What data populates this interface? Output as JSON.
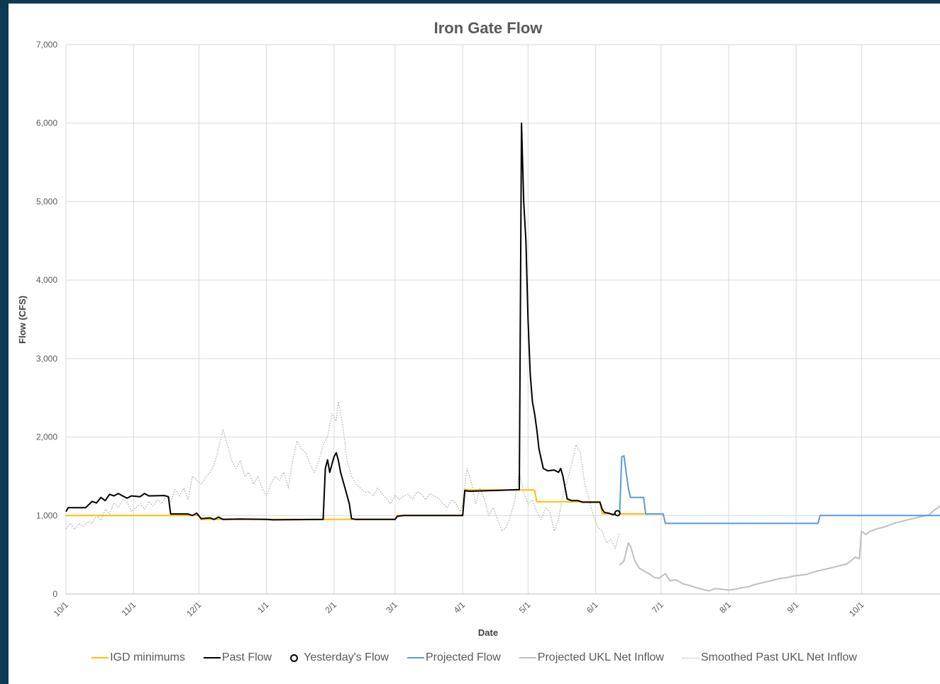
{
  "chart_data": {
    "type": "line",
    "title": "Iron Gate Flow",
    "xlabel": "Date",
    "ylabel": "Flow (CFS)",
    "ylim": [
      0,
      7000
    ],
    "y_ticks": [
      0,
      1000,
      2000,
      3000,
      4000,
      5000,
      6000,
      7000
    ],
    "y_tick_labels": [
      "0",
      "1,000",
      "2,000",
      "3,000",
      "4,000",
      "5,000",
      "6,000",
      "7,000"
    ],
    "x_ticks": [
      0,
      31,
      61,
      92,
      123,
      151,
      182,
      212,
      243,
      273,
      304,
      335,
      365
    ],
    "x_tick_labels": [
      "10/1",
      "11/1",
      "12/1",
      "1/1",
      "2/1",
      "3/1",
      "4/1",
      "5/1",
      "6/1",
      "7/1",
      "8/1",
      "9/1",
      "10/1"
    ],
    "xlim": [
      0,
      401
    ],
    "grid": true,
    "legend_position": "bottom",
    "series": [
      {
        "name": "IGD minimums",
        "color": "#FFC000",
        "style": "solid",
        "points": [
          [
            0,
            1000
          ],
          [
            61,
            1000
          ],
          [
            62,
            950
          ],
          [
            123,
            950
          ],
          [
            124,
            950
          ],
          [
            151,
            950
          ],
          [
            152,
            1000
          ],
          [
            182,
            1000
          ],
          [
            183,
            1325
          ],
          [
            215,
            1325
          ],
          [
            216,
            1175
          ],
          [
            245,
            1175
          ],
          [
            246,
            1021
          ],
          [
            268,
            1021
          ]
        ]
      },
      {
        "name": "Past Flow",
        "color": "#000000",
        "style": "solid",
        "points": [
          [
            0,
            1050
          ],
          [
            1,
            1100
          ],
          [
            9,
            1100
          ],
          [
            12,
            1180
          ],
          [
            14,
            1160
          ],
          [
            16,
            1230
          ],
          [
            18,
            1190
          ],
          [
            20,
            1270
          ],
          [
            22,
            1250
          ],
          [
            24,
            1280
          ],
          [
            26,
            1250
          ],
          [
            28,
            1220
          ],
          [
            30,
            1250
          ],
          [
            34,
            1240
          ],
          [
            36,
            1280
          ],
          [
            38,
            1250
          ],
          [
            45,
            1255
          ],
          [
            47,
            1240
          ],
          [
            48,
            1020
          ],
          [
            56,
            1020
          ],
          [
            58,
            1000
          ],
          [
            60,
            1030
          ],
          [
            62,
            960
          ],
          [
            66,
            970
          ],
          [
            68,
            950
          ],
          [
            70,
            980
          ],
          [
            72,
            950
          ],
          [
            80,
            955
          ],
          [
            92,
            950
          ],
          [
            95,
            945
          ],
          [
            110,
            948
          ],
          [
            118,
            950
          ],
          [
            119,
            1600
          ],
          [
            120,
            1710
          ],
          [
            121,
            1550
          ],
          [
            122,
            1650
          ],
          [
            123,
            1750
          ],
          [
            124,
            1800
          ],
          [
            125,
            1700
          ],
          [
            126,
            1550
          ],
          [
            128,
            1350
          ],
          [
            130,
            1150
          ],
          [
            131,
            960
          ],
          [
            133,
            950
          ],
          [
            145,
            950
          ],
          [
            151,
            950
          ],
          [
            152,
            990
          ],
          [
            155,
            1000
          ],
          [
            182,
            1000
          ],
          [
            183,
            1320
          ],
          [
            185,
            1310
          ],
          [
            198,
            1320
          ],
          [
            208,
            1330
          ],
          [
            209,
            6000
          ],
          [
            210,
            5000
          ],
          [
            211,
            4500
          ],
          [
            212,
            3500
          ],
          [
            213,
            2800
          ],
          [
            214,
            2450
          ],
          [
            215,
            2300
          ],
          [
            216,
            2100
          ],
          [
            217,
            1850
          ],
          [
            219,
            1600
          ],
          [
            221,
            1570
          ],
          [
            224,
            1580
          ],
          [
            226,
            1550
          ],
          [
            227,
            1600
          ],
          [
            228,
            1500
          ],
          [
            230,
            1210
          ],
          [
            232,
            1190
          ],
          [
            235,
            1190
          ],
          [
            237,
            1170
          ],
          [
            245,
            1170
          ],
          [
            246,
            1080
          ],
          [
            247,
            1040
          ],
          [
            249,
            1030
          ],
          [
            251,
            1010
          ],
          [
            253,
            1030
          ]
        ]
      },
      {
        "name": "Yesterday's Flow",
        "color": "#000000",
        "style": "marker",
        "points": [
          [
            253,
            1030
          ]
        ]
      },
      {
        "name": "Projected Flow",
        "color": "#5B9BD5",
        "style": "solid",
        "points": [
          [
            254,
            1030
          ],
          [
            255,
            1750
          ],
          [
            256,
            1760
          ],
          [
            257,
            1550
          ],
          [
            258,
            1350
          ],
          [
            259,
            1230
          ],
          [
            265,
            1230
          ],
          [
            266,
            1020
          ],
          [
            274,
            1020
          ],
          [
            275,
            900
          ],
          [
            345,
            900
          ],
          [
            346,
            1000
          ],
          [
            401,
            1000
          ]
        ]
      },
      {
        "name": "Projected UKL Net Inflow",
        "color": "#BFBFBF",
        "style": "solid",
        "points": [
          [
            254,
            370
          ],
          [
            256,
            420
          ],
          [
            258,
            650
          ],
          [
            259,
            610
          ],
          [
            261,
            420
          ],
          [
            263,
            330
          ],
          [
            266,
            280
          ],
          [
            268,
            250
          ],
          [
            270,
            210
          ],
          [
            272,
            200
          ],
          [
            275,
            260
          ],
          [
            277,
            170
          ],
          [
            280,
            180
          ],
          [
            283,
            130
          ],
          [
            286,
            110
          ],
          [
            289,
            80
          ],
          [
            292,
            60
          ],
          [
            295,
            40
          ],
          [
            298,
            70
          ],
          [
            301,
            60
          ],
          [
            304,
            50
          ],
          [
            307,
            60
          ],
          [
            310,
            80
          ],
          [
            313,
            90
          ],
          [
            316,
            120
          ],
          [
            319,
            140
          ],
          [
            322,
            160
          ],
          [
            325,
            180
          ],
          [
            328,
            200
          ],
          [
            331,
            210
          ],
          [
            334,
            230
          ],
          [
            337,
            240
          ],
          [
            340,
            250
          ],
          [
            343,
            280
          ],
          [
            346,
            300
          ],
          [
            349,
            320
          ],
          [
            352,
            340
          ],
          [
            355,
            360
          ],
          [
            358,
            380
          ],
          [
            360,
            420
          ],
          [
            362,
            470
          ],
          [
            364,
            450
          ],
          [
            365,
            800
          ],
          [
            367,
            760
          ],
          [
            369,
            800
          ],
          [
            372,
            830
          ],
          [
            375,
            850
          ],
          [
            378,
            880
          ],
          [
            381,
            910
          ],
          [
            384,
            930
          ],
          [
            387,
            950
          ],
          [
            390,
            970
          ],
          [
            393,
            990
          ],
          [
            396,
            1010
          ],
          [
            398,
            1060
          ],
          [
            401,
            1120
          ]
        ]
      },
      {
        "name": "Smoothed Past UKL Net Inflow",
        "color": "#A6A6A6",
        "style": "dotted",
        "points": [
          [
            0,
            830
          ],
          [
            2,
            900
          ],
          [
            4,
            820
          ],
          [
            6,
            900
          ],
          [
            8,
            860
          ],
          [
            10,
            920
          ],
          [
            12,
            900
          ],
          [
            14,
            1000
          ],
          [
            16,
            940
          ],
          [
            18,
            1080
          ],
          [
            20,
            1020
          ],
          [
            22,
            1160
          ],
          [
            24,
            1100
          ],
          [
            26,
            1200
          ],
          [
            28,
            1180
          ],
          [
            30,
            1050
          ],
          [
            32,
            1100
          ],
          [
            34,
            1150
          ],
          [
            36,
            1080
          ],
          [
            38,
            1180
          ],
          [
            40,
            1120
          ],
          [
            42,
            1200
          ],
          [
            44,
            1150
          ],
          [
            46,
            1250
          ],
          [
            48,
            1180
          ],
          [
            50,
            1330
          ],
          [
            52,
            1250
          ],
          [
            54,
            1350
          ],
          [
            56,
            1200
          ],
          [
            58,
            1500
          ],
          [
            60,
            1450
          ],
          [
            62,
            1400
          ],
          [
            64,
            1480
          ],
          [
            66,
            1550
          ],
          [
            68,
            1650
          ],
          [
            70,
            1850
          ],
          [
            72,
            2100
          ],
          [
            74,
            1900
          ],
          [
            76,
            1700
          ],
          [
            78,
            1600
          ],
          [
            80,
            1700
          ],
          [
            82,
            1500
          ],
          [
            84,
            1550
          ],
          [
            86,
            1400
          ],
          [
            88,
            1500
          ],
          [
            90,
            1350
          ],
          [
            92,
            1250
          ],
          [
            94,
            1400
          ],
          [
            96,
            1500
          ],
          [
            98,
            1450
          ],
          [
            100,
            1550
          ],
          [
            102,
            1350
          ],
          [
            104,
            1700
          ],
          [
            106,
            1950
          ],
          [
            108,
            1850
          ],
          [
            110,
            1800
          ],
          [
            112,
            1650
          ],
          [
            114,
            1550
          ],
          [
            116,
            1700
          ],
          [
            118,
            1900
          ],
          [
            120,
            2000
          ],
          [
            122,
            2300
          ],
          [
            124,
            2200
          ],
          [
            125,
            2450
          ],
          [
            127,
            2150
          ],
          [
            129,
            1700
          ],
          [
            131,
            1500
          ],
          [
            133,
            1400
          ],
          [
            135,
            1350
          ],
          [
            137,
            1300
          ],
          [
            139,
            1300
          ],
          [
            141,
            1250
          ],
          [
            143,
            1350
          ],
          [
            145,
            1280
          ],
          [
            147,
            1220
          ],
          [
            149,
            1150
          ],
          [
            151,
            1260
          ],
          [
            153,
            1200
          ],
          [
            155,
            1250
          ],
          [
            157,
            1270
          ],
          [
            159,
            1200
          ],
          [
            161,
            1300
          ],
          [
            163,
            1280
          ],
          [
            165,
            1200
          ],
          [
            167,
            1280
          ],
          [
            169,
            1250
          ],
          [
            171,
            1220
          ],
          [
            173,
            1150
          ],
          [
            175,
            1100
          ],
          [
            177,
            1200
          ],
          [
            179,
            1150
          ],
          [
            181,
            1050
          ],
          [
            182,
            1150
          ],
          [
            184,
            1600
          ],
          [
            186,
            1420
          ],
          [
            188,
            1150
          ],
          [
            190,
            1350
          ],
          [
            192,
            1200
          ],
          [
            194,
            1000
          ],
          [
            196,
            1100
          ],
          [
            198,
            950
          ],
          [
            200,
            800
          ],
          [
            202,
            850
          ],
          [
            204,
            1000
          ],
          [
            206,
            1200
          ],
          [
            208,
            1550
          ],
          [
            210,
            1300
          ],
          [
            212,
            1150
          ],
          [
            214,
            1200
          ],
          [
            216,
            1050
          ],
          [
            218,
            950
          ],
          [
            220,
            1100
          ],
          [
            222,
            1050
          ],
          [
            224,
            800
          ],
          [
            226,
            950
          ],
          [
            228,
            1250
          ],
          [
            230,
            1450
          ],
          [
            232,
            1650
          ],
          [
            234,
            1900
          ],
          [
            236,
            1800
          ],
          [
            238,
            1400
          ],
          [
            240,
            1200
          ],
          [
            242,
            1000
          ],
          [
            244,
            850
          ],
          [
            246,
            800
          ],
          [
            248,
            650
          ],
          [
            250,
            700
          ],
          [
            252,
            580
          ],
          [
            254,
            780
          ]
        ]
      }
    ]
  }
}
